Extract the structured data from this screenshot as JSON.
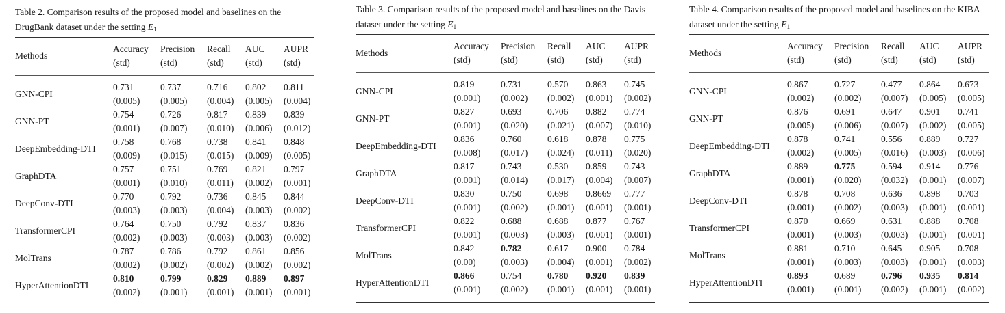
{
  "tables": [
    {
      "caption": "Table 2. Comparison results of the proposed model and baselines on the DrugBank dataset under the setting ",
      "caption_math": {
        "symbol": "E",
        "subscript": "1"
      },
      "headers": {
        "methods": "Methods",
        "metrics": [
          "Accuracy",
          "Precision",
          "Recall",
          "AUC",
          "AUPR"
        ],
        "std": "(std)"
      },
      "rows": [
        {
          "method": "GNN-CPI",
          "values": [
            "0.731",
            "0.737",
            "0.716",
            "0.802",
            "0.811"
          ],
          "stds": [
            "(0.005)",
            "(0.005)",
            "(0.004)",
            "(0.005)",
            "(0.004)"
          ],
          "bold": []
        },
        {
          "method": "GNN-PT",
          "values": [
            "0.754",
            "0.726",
            "0.817",
            "0.839",
            "0.839"
          ],
          "stds": [
            "(0.001)",
            "(0.007)",
            "(0.010)",
            "(0.006)",
            "(0.012)"
          ],
          "bold": []
        },
        {
          "method": "DeepEmbedding-DTI",
          "values": [
            "0.758",
            "0.768",
            "0.738",
            "0.841",
            "0.848"
          ],
          "stds": [
            "(0.009)",
            "(0.015)",
            "(0.015)",
            "(0.009)",
            "(0.005)"
          ],
          "bold": []
        },
        {
          "method": "GraphDTA",
          "values": [
            "0.757",
            "0.751",
            "0.769",
            "0.821",
            "0.797"
          ],
          "stds": [
            "(0.001)",
            "(0.010)",
            "(0.011)",
            "(0.002)",
            "(0.001)"
          ],
          "bold": []
        },
        {
          "method": "DeepConv-DTI",
          "values": [
            "0.770",
            "0.792",
            "0.736",
            "0.845",
            "0.844"
          ],
          "stds": [
            "(0.003)",
            "(0.003)",
            "(0.004)",
            "(0.003)",
            "(0.002)"
          ],
          "bold": []
        },
        {
          "method": "TransformerCPI",
          "values": [
            "0.764",
            "0.750",
            "0.792",
            "0.837",
            "0.836"
          ],
          "stds": [
            "(0.002)",
            "(0.003)",
            "(0.003)",
            "(0.003)",
            "(0.002)"
          ],
          "bold": []
        },
        {
          "method": "MolTrans",
          "values": [
            "0.787",
            "0.786",
            "0.792",
            "0.861",
            "0.856"
          ],
          "stds": [
            "(0.002)",
            "(0.002)",
            "(0.002)",
            "(0.002)",
            "(0.002)"
          ],
          "bold": []
        },
        {
          "method": "HyperAttentionDTI",
          "values": [
            "0.810",
            "0.799",
            "0.829",
            "0.889",
            "0.897"
          ],
          "stds": [
            "(0.002)",
            "(0.001)",
            "(0.001)",
            "(0.001)",
            "(0.001)"
          ],
          "bold": [
            0,
            1,
            2,
            3,
            4
          ]
        }
      ]
    },
    {
      "caption": "Table 3. Comparison results of the proposed model and baselines on the Davis dataset under the setting ",
      "caption_math": {
        "symbol": "E",
        "subscript": "1"
      },
      "headers": {
        "methods": "Methods",
        "metrics": [
          "Accuracy",
          "Precision",
          "Recall",
          "AUC",
          "AUPR"
        ],
        "std": "(std)"
      },
      "rows": [
        {
          "method": "GNN-CPI",
          "values": [
            "0.819",
            "0.731",
            "0.570",
            "0.863",
            "0.745"
          ],
          "stds": [
            "(0.001)",
            "(0.002)",
            "(0.002)",
            "(0.001)",
            "(0.002)"
          ],
          "bold": []
        },
        {
          "method": "GNN-PT",
          "values": [
            "0.827",
            "0.693",
            "0.706",
            "0.882",
            "0.774"
          ],
          "stds": [
            "(0.001)",
            "(0.020)",
            "(0.021)",
            "(0.007)",
            "(0.010)"
          ],
          "bold": []
        },
        {
          "method": "DeepEmbedding-DTI",
          "values": [
            "0.836",
            "0.760",
            "0.618",
            "0.878",
            "0.775"
          ],
          "stds": [
            "(0.008)",
            "(0.017)",
            "(0.024)",
            "(0.011)",
            "(0.020)"
          ],
          "bold": []
        },
        {
          "method": "GraphDTA",
          "values": [
            "0.817",
            "0.743",
            "0.530",
            "0.859",
            "0.743"
          ],
          "stds": [
            "(0.001)",
            "(0.014)",
            "(0.017)",
            "(0.004)",
            "(0.007)"
          ],
          "bold": []
        },
        {
          "method": "DeepConv-DTI",
          "values": [
            "0.830",
            "0.750",
            "0.698",
            "0.8669",
            "0.777"
          ],
          "stds": [
            "(0.001)",
            "(0.002)",
            "(0.001)",
            "(0.001)",
            "(0.001)"
          ],
          "bold": []
        },
        {
          "method": "TransformerCPI",
          "values": [
            "0.822",
            "0.688",
            "0.688",
            "0.877",
            "0.767"
          ],
          "stds": [
            "(0.001)",
            "(0.003)",
            "(0.003)",
            "(0.001)",
            "(0.001)"
          ],
          "bold": []
        },
        {
          "method": "MolTrans",
          "values": [
            "0.842",
            "0.782",
            "0.617",
            "0.900",
            "0.784"
          ],
          "stds": [
            "(0.00)",
            "(0.003)",
            "(0.004)",
            "(0.001)",
            "(0.002)"
          ],
          "bold": [
            1
          ]
        },
        {
          "method": "HyperAttentionDTI",
          "values": [
            "0.866",
            "0.754",
            "0.780",
            "0.920",
            "0.839"
          ],
          "stds": [
            "(0.001)",
            "(0.002)",
            "(0.001)",
            "(0.001)",
            "(0.001)"
          ],
          "bold": [
            0,
            2,
            3,
            4
          ]
        }
      ]
    },
    {
      "caption": "Table 4. Comparison results of the proposed model and baselines on the KIBA dataset under the setting ",
      "caption_math": {
        "symbol": "E",
        "subscript": "1"
      },
      "headers": {
        "methods": "Methods",
        "metrics": [
          "Accuracy",
          "Precision",
          "Recall",
          "AUC",
          "AUPR"
        ],
        "std": "(std)"
      },
      "rows": [
        {
          "method": "GNN-CPI",
          "values": [
            "0.867",
            "0.727",
            "0.477",
            "0.864",
            "0.673"
          ],
          "stds": [
            "(0.002)",
            "(0.002)",
            "(0.007)",
            "(0.005)",
            "(0.005)"
          ],
          "bold": []
        },
        {
          "method": "GNN-PT",
          "values": [
            "0.876",
            "0.691",
            "0.647",
            "0.901",
            "0.741"
          ],
          "stds": [
            "(0.005)",
            "(0.006)",
            "(0.007)",
            "(0.002)",
            "(0.005)"
          ],
          "bold": []
        },
        {
          "method": "DeepEmbedding-DTI",
          "values": [
            "0.878",
            "0.741",
            "0.556",
            "0.889",
            "0.727"
          ],
          "stds": [
            "(0.002)",
            "(0.005)",
            "(0.016)",
            "(0.003)",
            "(0.006)"
          ],
          "bold": []
        },
        {
          "method": "GraphDTA",
          "values": [
            "0.889",
            "0.775",
            "0.594",
            "0.914",
            "0.776"
          ],
          "stds": [
            "(0.001)",
            "(0.020)",
            "(0.032)",
            "(0.001)",
            "(0.007)"
          ],
          "bold": [
            1
          ]
        },
        {
          "method": "DeepConv-DTI",
          "values": [
            "0.878",
            "0.708",
            "0.636",
            "0.898",
            "0.703"
          ],
          "stds": [
            "(0.001)",
            "(0.002)",
            "(0.003)",
            "(0.001)",
            "(0.001)"
          ],
          "bold": []
        },
        {
          "method": "TransformerCPI",
          "values": [
            "0.870",
            "0.669",
            "0.631",
            "0.888",
            "0.708"
          ],
          "stds": [
            "(0.001)",
            "(0.003)",
            "(0.003)",
            "(0.001)",
            "(0.001)"
          ],
          "bold": []
        },
        {
          "method": "MolTrans",
          "values": [
            "0.881",
            "0.710",
            "0.645",
            "0.905",
            "0.708"
          ],
          "stds": [
            "(0.001)",
            "(0.003)",
            "(0.003)",
            "(0.001)",
            "(0.003)"
          ],
          "bold": []
        },
        {
          "method": "HyperAttentionDTI",
          "values": [
            "0.893",
            "0.689",
            "0.796",
            "0.935",
            "0.814"
          ],
          "stds": [
            "(0.001)",
            "(0.001)",
            "(0.002)",
            "(0.001)",
            "(0.002)"
          ],
          "bold": [
            0,
            2,
            3,
            4
          ]
        }
      ]
    }
  ]
}
